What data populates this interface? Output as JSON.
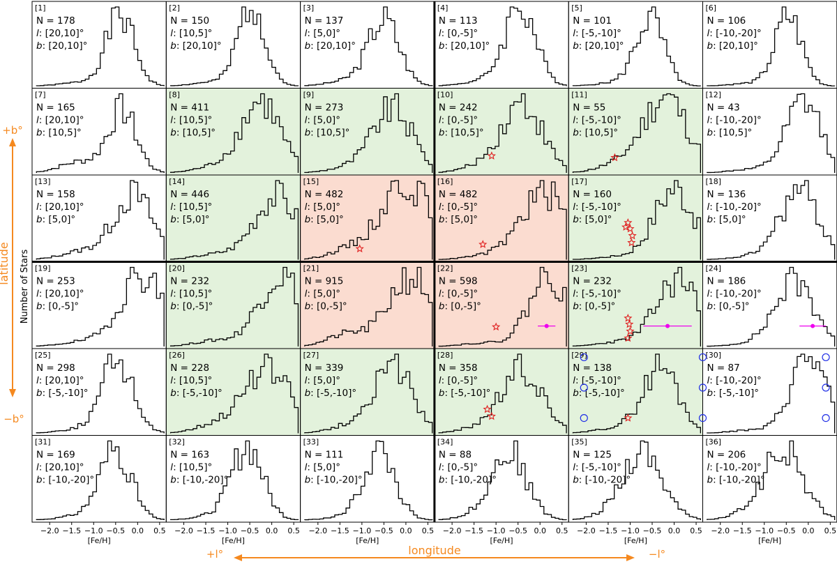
{
  "chart_data": {
    "type": "histogram-grid",
    "rows": 6,
    "cols": 6,
    "xlabel": "[Fe/H]",
    "ylabel": "Number of Stars",
    "xlim": [
      -2.4,
      0.65
    ],
    "xticks": [
      -2.0,
      -1.5,
      -1.0,
      -0.5,
      0.0,
      0.5
    ],
    "xtick_labels": [
      "−2.0",
      "−1.5",
      "−1.0",
      "−0.5",
      "0.0",
      "0.5"
    ],
    "bottom_axis_label": "longitude",
    "side_axis_label": "latitude",
    "plus_l_label": "+l°",
    "minus_l_label": "−l°",
    "plus_b_label": "+b°",
    "minus_b_label": "−b°",
    "l_ranges": [
      "[20,10]",
      "[10,5]",
      "[5,0]",
      "[0,-5]",
      "[-5,-10]",
      "[-10,-20]"
    ],
    "b_ranges": [
      "[20,10]",
      "[10,5]",
      "[5,0]",
      "[0,-5]",
      "[-5,-10]",
      "[-10,-20]"
    ],
    "panels": [
      {
        "id": "[1]",
        "n": "N = 178",
        "l": "[20,10]°",
        "b": "[20,10]°",
        "shade": "none",
        "peak": -0.4,
        "width": 0.32,
        "tail": 0.05
      },
      {
        "id": "[2]",
        "n": "N = 150",
        "l": "[10,5]°",
        "b": "[20,10]°",
        "shade": "none",
        "peak": -0.45,
        "width": 0.3,
        "tail": 0.05
      },
      {
        "id": "[3]",
        "n": "N = 137",
        "l": "[5,0]°",
        "b": "[20,10]°",
        "shade": "none",
        "peak": -0.5,
        "width": 0.35,
        "tail": 0.08
      },
      {
        "id": "[4]",
        "n": "N = 113",
        "l": "[0,-5]°",
        "b": "[20,10]°",
        "shade": "none",
        "peak": -0.45,
        "width": 0.35,
        "tail": 0.06
      },
      {
        "id": "[5]",
        "n": "N = 101",
        "l": "[-5,-10]°",
        "b": "[20,10]°",
        "shade": "none",
        "peak": -0.55,
        "width": 0.32,
        "tail": 0.05
      },
      {
        "id": "[6]",
        "n": "N = 106",
        "l": "[-10,-20]°",
        "b": "[20,10]°",
        "shade": "none",
        "peak": -0.45,
        "width": 0.3,
        "tail": 0.04
      },
      {
        "id": "[7]",
        "n": "N = 165",
        "l": "[20,10]°",
        "b": "[10,5]°",
        "shade": "none",
        "peak": -0.35,
        "width": 0.32,
        "tail": 0.18
      },
      {
        "id": "[8]",
        "n": "N = 411",
        "l": "[10,5]°",
        "b": "[10,5]°",
        "shade": "green",
        "peak": -0.25,
        "width": 0.45,
        "tail": 0.08
      },
      {
        "id": "[9]",
        "n": "N = 273",
        "l": "[5,0]°",
        "b": "[10,5]°",
        "shade": "green",
        "peak": -0.3,
        "width": 0.45,
        "tail": 0.08
      },
      {
        "id": "[10]",
        "n": "N = 242",
        "l": "[0,-5]°",
        "b": "[10,5]°",
        "shade": "green",
        "peak": -0.4,
        "width": 0.45,
        "tail": 0.1
      },
      {
        "id": "[11]",
        "n": "N = 55",
        "l": "[-5,-10]°",
        "b": "[10,5]°",
        "shade": "green",
        "peak": -0.2,
        "width": 0.5,
        "tail": 0.1
      },
      {
        "id": "[12]",
        "n": "N = 43",
        "l": "[-10,-20]°",
        "b": "[10,5]°",
        "shade": "none",
        "peak": -0.1,
        "width": 0.4,
        "tail": 0.05
      },
      {
        "id": "[13]",
        "n": "N = 158",
        "l": "[20,10]°",
        "b": "[5,0]°",
        "shade": "none",
        "peak": -0.1,
        "width": 0.45,
        "tail": 0.12
      },
      {
        "id": "[14]",
        "n": "N = 446",
        "l": "[10,5]°",
        "b": "[5,0]°",
        "shade": "green",
        "peak": 0.1,
        "width": 0.5,
        "tail": 0.08
      },
      {
        "id": "[15]",
        "n": "N = 482",
        "l": "[5,0]°",
        "b": "[5,0]°",
        "shade": "red",
        "peak": 0.0,
        "width": 0.55,
        "tail": 0.12
      },
      {
        "id": "[16]",
        "n": "N = 482",
        "l": "[0,-5]°",
        "b": "[5,0]°",
        "shade": "red",
        "peak": 0.1,
        "width": 0.55,
        "tail": 0.05
      },
      {
        "id": "[17]",
        "n": "N = 160",
        "l": "[-5,-10]°",
        "b": "[5,0]°",
        "shade": "green",
        "peak": 0.0,
        "width": 0.45,
        "tail": 0.04
      },
      {
        "id": "[18]",
        "n": "N = 136",
        "l": "[-10,-20]°",
        "b": "[5,0]°",
        "shade": "none",
        "peak": -0.2,
        "width": 0.45,
        "tail": 0.04
      },
      {
        "id": "[19]",
        "n": "N = 253",
        "l": "[20,10]°",
        "b": "[0,-5]°",
        "shade": "none",
        "peak": 0.1,
        "width": 0.5,
        "tail": 0.06
      },
      {
        "id": "[20]",
        "n": "N = 232",
        "l": "[10,5]°",
        "b": "[0,-5]°",
        "shade": "green",
        "peak": 0.2,
        "width": 0.5,
        "tail": 0.08
      },
      {
        "id": "[21]",
        "n": "N = 915",
        "l": "[5,0]°",
        "b": "[0,-5]°",
        "shade": "red",
        "peak": 0.1,
        "width": 0.5,
        "tail": 0.18
      },
      {
        "id": "[22]",
        "n": "N = 598",
        "l": "[0,-5]°",
        "b": "[0,-5]°",
        "shade": "red",
        "peak": 0.2,
        "width": 0.45,
        "tail": 0.05
      },
      {
        "id": "[23]",
        "n": "N = 232",
        "l": "[-5,-10]°",
        "b": "[0,-5]°",
        "shade": "green",
        "peak": 0.1,
        "width": 0.5,
        "tail": 0.06
      },
      {
        "id": "[24]",
        "n": "N = 186",
        "l": "[-10,-20]°",
        "b": "[0,-5]°",
        "shade": "none",
        "peak": -0.3,
        "width": 0.45,
        "tail": 0.04
      },
      {
        "id": "[25]",
        "n": "N = 298",
        "l": "[20,10]°",
        "b": "[-5,-10]°",
        "shade": "none",
        "peak": -0.45,
        "width": 0.35,
        "tail": 0.06
      },
      {
        "id": "[26]",
        "n": "N = 228",
        "l": "[10,5]°",
        "b": "[-5,-10]°",
        "shade": "green",
        "peak": -0.1,
        "width": 0.55,
        "tail": 0.12
      },
      {
        "id": "[27]",
        "n": "N = 339",
        "l": "[5,0]°",
        "b": "[-5,-10]°",
        "shade": "green",
        "peak": -0.3,
        "width": 0.45,
        "tail": 0.1
      },
      {
        "id": "[28]",
        "n": "N = 358",
        "l": "[0,-5]°",
        "b": "[-5,-10]°",
        "shade": "green",
        "peak": -0.4,
        "width": 0.45,
        "tail": 0.1
      },
      {
        "id": "[29]",
        "n": "N = 138",
        "l": "[-5,-10]°",
        "b": "[-5,-10]°",
        "shade": "green",
        "peak": -0.3,
        "width": 0.4,
        "tail": 0.08
      },
      {
        "id": "[30]",
        "n": "N = 87",
        "l": "[-10,-20]°",
        "b": "[-5,-10]°",
        "shade": "none",
        "peak": 0.0,
        "width": 0.4,
        "tail": 0.04
      },
      {
        "id": "[31]",
        "n": "N = 169",
        "l": "[20,10]°",
        "b": "[-10,-20]°",
        "shade": "none",
        "peak": -0.5,
        "width": 0.35,
        "tail": 0.06
      },
      {
        "id": "[32]",
        "n": "N = 163",
        "l": "[10,5]°",
        "b": "[-10,-20]°",
        "shade": "none",
        "peak": -0.55,
        "width": 0.35,
        "tail": 0.06
      },
      {
        "id": "[33]",
        "n": "N = 111",
        "l": "[5,0]°",
        "b": "[-10,-20]°",
        "shade": "none",
        "peak": -0.6,
        "width": 0.35,
        "tail": 0.05
      },
      {
        "id": "[34]",
        "n": "N = 88",
        "l": "[0,-5]°",
        "b": "[-10,-20]°",
        "shade": "none",
        "peak": -0.7,
        "width": 0.4,
        "tail": 0.08
      },
      {
        "id": "[35]",
        "n": "N = 125",
        "l": "[-5,-10]°",
        "b": "[-10,-20]°",
        "shade": "none",
        "peak": -0.7,
        "width": 0.45,
        "tail": 0.08
      },
      {
        "id": "[36]",
        "n": "N = 206",
        "l": "[-10,-20]°",
        "b": "[-10,-20]°",
        "shade": "none",
        "peak": -0.55,
        "width": 0.45,
        "tail": 0.08
      }
    ],
    "stars": [
      {
        "panel": 10,
        "x": -1.1,
        "y": 0.22
      },
      {
        "panel": 11,
        "x": -1.35,
        "y": 0.2
      },
      {
        "panel": 15,
        "x": -1.05,
        "y": 0.15
      },
      {
        "panel": 16,
        "x": -1.3,
        "y": 0.2
      },
      {
        "panel": 17,
        "x": -1.1,
        "y": 0.4
      },
      {
        "panel": 17,
        "x": -1.05,
        "y": 0.45
      },
      {
        "panel": 17,
        "x": -1.0,
        "y": 0.38
      },
      {
        "panel": 17,
        "x": -0.95,
        "y": 0.3
      },
      {
        "panel": 17,
        "x": -0.97,
        "y": 0.22
      },
      {
        "panel": 22,
        "x": -1.0,
        "y": 0.25
      },
      {
        "panel": 23,
        "x": -1.05,
        "y": 0.35
      },
      {
        "panel": 23,
        "x": -1.02,
        "y": 0.28
      },
      {
        "panel": 23,
        "x": -1.0,
        "y": 0.2
      },
      {
        "panel": 23,
        "x": -1.05,
        "y": 0.12
      },
      {
        "panel": 28,
        "x": -1.1,
        "y": 0.22
      },
      {
        "panel": 28,
        "x": -1.2,
        "y": 0.3
      },
      {
        "panel": 29,
        "x": -1.05,
        "y": 0.2
      },
      {
        "panel": 37,
        "x": -1.4,
        "y": 0.2
      }
    ],
    "error_bars": [
      {
        "panel": 22,
        "center": 0.15,
        "half": 0.2
      },
      {
        "panel": 23,
        "center": -0.15,
        "half": 0.55
      },
      {
        "panel": 24,
        "center": 0.1,
        "half": 0.3
      }
    ],
    "circles": [
      {
        "panel": 29,
        "x": -2.05,
        "y": 0.9
      },
      {
        "panel": 29,
        "x": -2.05,
        "y": 0.55
      },
      {
        "panel": 29,
        "x": -2.05,
        "y": 0.2
      },
      {
        "panel": 30,
        "x": -2.4,
        "y": 0.9
      },
      {
        "panel": 30,
        "x": -2.4,
        "y": 0.55
      },
      {
        "panel": 30,
        "x": -2.4,
        "y": 0.2
      },
      {
        "panel": 30,
        "x": 0.4,
        "y": 0.9
      },
      {
        "panel": 30,
        "x": 0.4,
        "y": 0.55
      },
      {
        "panel": 30,
        "x": 0.4,
        "y": 0.2
      }
    ],
    "colors": {
      "green": "#e3f2dc",
      "red": "#fbdcd0",
      "orange": "#f5891f",
      "star": "#e02020",
      "errorbar": "#ee00ee",
      "circle": "#1f2ee6"
    }
  }
}
